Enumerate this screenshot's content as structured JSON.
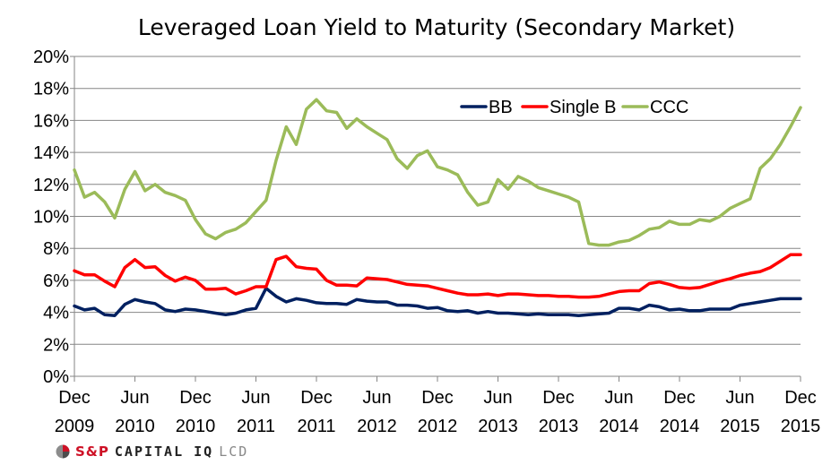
{
  "chart_data": {
    "type": "line",
    "title": "Leveraged Loan Yield to Maturity (Secondary Market)",
    "xlabel": "",
    "ylabel": "",
    "ylim": [
      0,
      20
    ],
    "yticks": [
      "0%",
      "2%",
      "4%",
      "6%",
      "8%",
      "10%",
      "12%",
      "14%",
      "16%",
      "18%",
      "20%"
    ],
    "xticks": [
      {
        "month": "Dec",
        "year": "2009"
      },
      {
        "month": "Jun",
        "year": "2010"
      },
      {
        "month": "Dec",
        "year": "2010"
      },
      {
        "month": "Jun",
        "year": "2011"
      },
      {
        "month": "Dec",
        "year": "2011"
      },
      {
        "month": "Jun",
        "year": "2012"
      },
      {
        "month": "Dec",
        "year": "2012"
      },
      {
        "month": "Jun",
        "year": "2013"
      },
      {
        "month": "Dec",
        "year": "2013"
      },
      {
        "month": "Jun",
        "year": "2014"
      },
      {
        "month": "Dec",
        "year": "2014"
      },
      {
        "month": "Jun",
        "year": "2015"
      },
      {
        "month": "Dec",
        "year": "2015"
      }
    ],
    "x_months": [
      0,
      1,
      2,
      3,
      4,
      5,
      6,
      7,
      8,
      9,
      10,
      11,
      12,
      13,
      14,
      15,
      16,
      17,
      18,
      19,
      20,
      21,
      22,
      23,
      24,
      25,
      26,
      27,
      28,
      29,
      30,
      31,
      32,
      33,
      34,
      35,
      36,
      37,
      38,
      39,
      40,
      41,
      42,
      43,
      44,
      45,
      46,
      47,
      48,
      49,
      50,
      51,
      52,
      53,
      54,
      55,
      56,
      57,
      58,
      59,
      60,
      61,
      62,
      63,
      64,
      65,
      66,
      67,
      68,
      69,
      70,
      71,
      72
    ],
    "series": [
      {
        "name": "BB",
        "color": "#002060",
        "values": [
          4.4,
          4.15,
          4.25,
          3.85,
          3.8,
          4.5,
          4.8,
          4.65,
          4.55,
          4.15,
          4.05,
          4.2,
          4.15,
          4.05,
          3.95,
          3.85,
          3.95,
          4.15,
          4.25,
          5.5,
          5.0,
          4.65,
          4.85,
          4.75,
          4.6,
          4.55,
          4.55,
          4.5,
          4.8,
          4.7,
          4.65,
          4.65,
          4.45,
          4.45,
          4.4,
          4.25,
          4.3,
          4.1,
          4.05,
          4.1,
          3.95,
          4.05,
          3.95,
          3.95,
          3.9,
          3.85,
          3.9,
          3.85,
          3.85,
          3.85,
          3.8,
          3.85,
          3.9,
          3.95,
          4.25,
          4.25,
          4.15,
          4.45,
          4.35,
          4.15,
          4.2,
          4.1,
          4.1,
          4.2,
          4.2,
          4.2,
          4.45,
          4.55,
          4.65,
          4.75,
          4.85,
          4.85,
          4.85
        ]
      },
      {
        "name": "Single B",
        "color": "#ff0000",
        "values": [
          6.6,
          6.35,
          6.35,
          5.95,
          5.6,
          6.8,
          7.3,
          6.8,
          6.85,
          6.3,
          5.95,
          6.2,
          6.0,
          5.45,
          5.45,
          5.5,
          5.15,
          5.35,
          5.6,
          5.6,
          7.3,
          7.5,
          6.85,
          6.75,
          6.7,
          6.0,
          5.7,
          5.7,
          5.65,
          6.15,
          6.1,
          6.05,
          5.9,
          5.75,
          5.7,
          5.65,
          5.5,
          5.35,
          5.2,
          5.1,
          5.1,
          5.15,
          5.05,
          5.15,
          5.15,
          5.1,
          5.05,
          5.05,
          5.0,
          5.0,
          4.95,
          4.95,
          5.0,
          5.15,
          5.3,
          5.35,
          5.35,
          5.8,
          5.9,
          5.75,
          5.55,
          5.5,
          5.55,
          5.75,
          5.95,
          6.1,
          6.3,
          6.45,
          6.55,
          6.8,
          7.2,
          7.6,
          7.6
        ]
      },
      {
        "name": "CCC",
        "color": "#9bbb59",
        "values": [
          12.9,
          11.2,
          11.5,
          10.9,
          9.9,
          11.7,
          12.8,
          11.6,
          12.0,
          11.5,
          11.3,
          11.0,
          9.8,
          8.9,
          8.6,
          9.0,
          9.2,
          9.6,
          10.3,
          11.0,
          13.5,
          15.6,
          14.5,
          16.7,
          17.3,
          16.6,
          16.5,
          15.5,
          16.1,
          15.6,
          15.2,
          14.8,
          13.6,
          13.0,
          13.8,
          14.1,
          13.1,
          12.9,
          12.6,
          11.5,
          10.7,
          10.9,
          12.3,
          11.7,
          12.5,
          12.2,
          11.8,
          11.6,
          11.4,
          11.2,
          10.9,
          8.3,
          8.2,
          8.2,
          8.4,
          8.5,
          8.8,
          9.2,
          9.3,
          9.7,
          9.5,
          9.5,
          9.8,
          9.7,
          10.0,
          10.5,
          10.8,
          11.1,
          13.0,
          13.6,
          14.5,
          15.6,
          16.8
        ]
      }
    ],
    "legend": [
      "BB",
      "Single B",
      "CCC"
    ],
    "legend_position": "top-right",
    "grid": true
  },
  "footer": {
    "brand_name": "S&P",
    "brand_cap": "CAPITAL IQ",
    "brand_lcd": "LCD"
  }
}
